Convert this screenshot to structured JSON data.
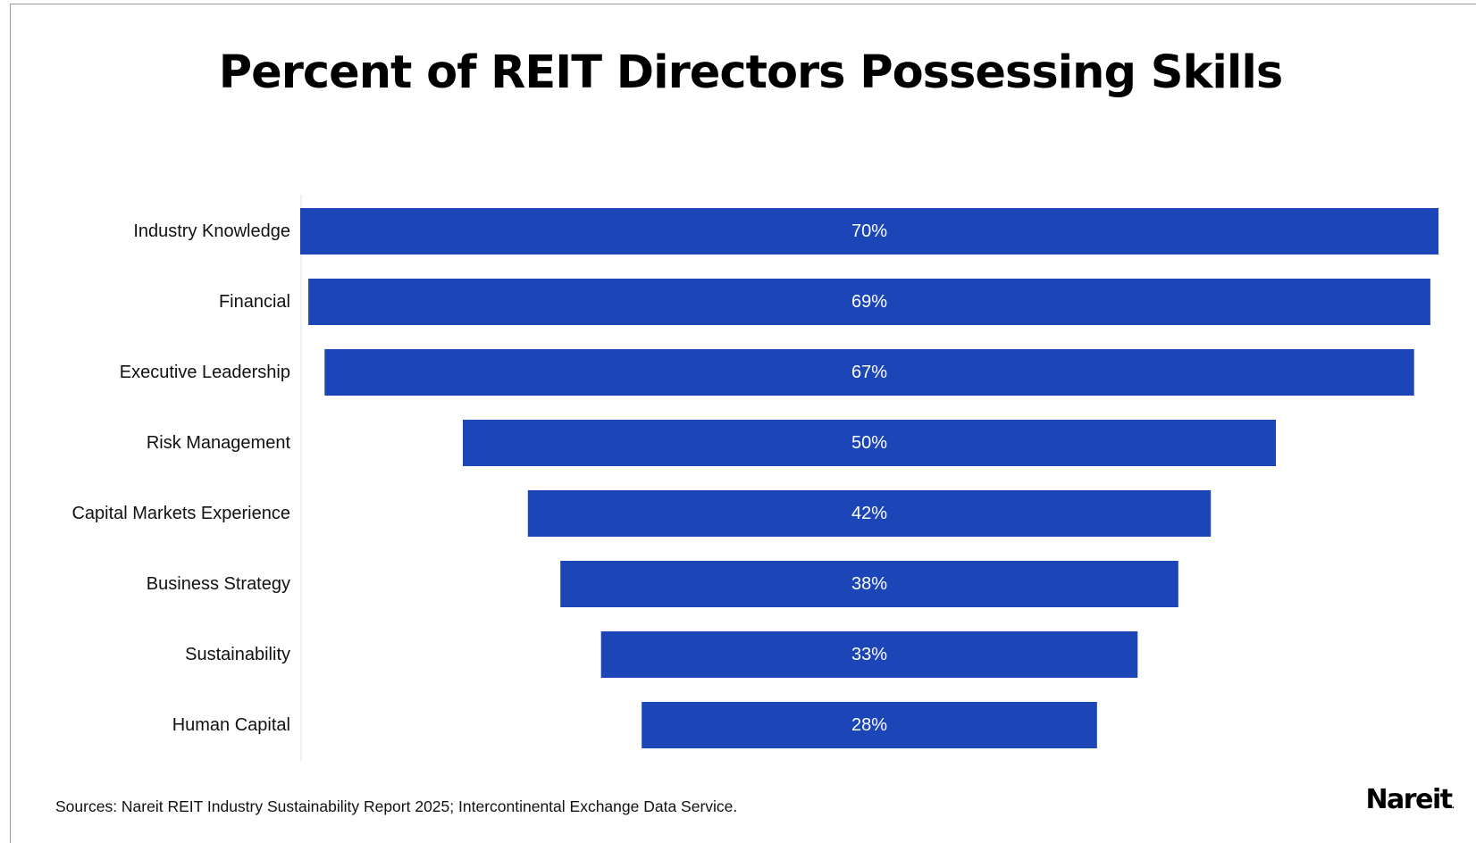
{
  "chart_data": {
    "type": "bar",
    "orientation": "horizontal",
    "style": "funnel-centered",
    "title": "Percent of REIT Directors Possessing Skills",
    "categories": [
      "Industry Knowledge",
      "Financial",
      "Executive Leadership",
      "Risk Management",
      "Capital Markets Experience",
      "Business Strategy",
      "Sustainability",
      "Human Capital"
    ],
    "values": [
      70,
      69,
      67,
      50,
      42,
      38,
      33,
      28
    ],
    "value_labels": [
      "70%",
      "69%",
      "67%",
      "50%",
      "42%",
      "38%",
      "33%",
      "28%"
    ],
    "unit": "%",
    "bar_color": "#1c45b8",
    "value_label_color": "#ffffff",
    "grid": false,
    "legend": "none"
  },
  "footer": {
    "source": "Sources: Nareit REIT Industry Sustainability Report 2025; Intercontinental Exchange Data Service."
  },
  "logo": {
    "text": "Nareit",
    "mark": "."
  }
}
